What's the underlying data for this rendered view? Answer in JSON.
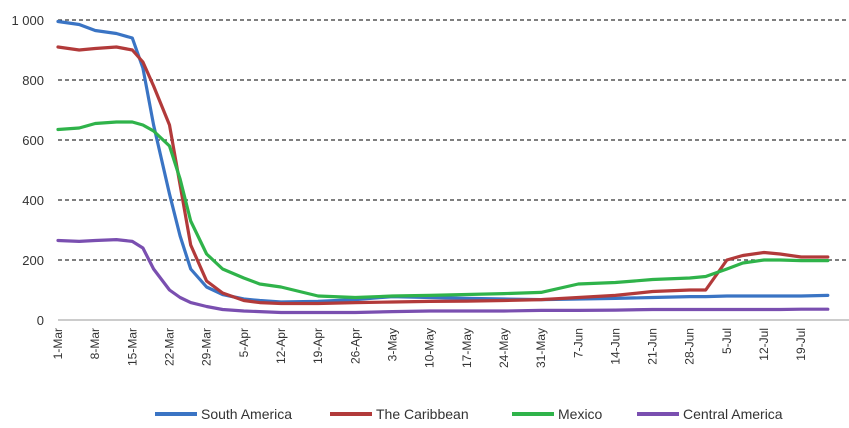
{
  "chart_data": {
    "type": "line",
    "title": "",
    "xlabel": "",
    "ylabel": "",
    "ylim": [
      0,
      1000
    ],
    "yticks": [
      "0",
      "200",
      "400",
      "600",
      "800",
      "1 000"
    ],
    "ytick_values": [
      0,
      200,
      400,
      600,
      800,
      1000
    ],
    "grid": "horizontal dashed",
    "legend_position": "bottom",
    "x_start": "1-Mar",
    "x_tick_labels": [
      "1-Mar",
      "8-Mar",
      "15-Mar",
      "22-Mar",
      "29-Mar",
      "5-Apr",
      "12-Apr",
      "19-Apr",
      "26-Apr",
      "3-May",
      "10-May",
      "17-May",
      "24-May",
      "31-May",
      "7-Jun",
      "14-Jun",
      "21-Jun",
      "28-Jun",
      "5-Jul",
      "12-Jul",
      "19-Jul"
    ],
    "x": [
      "1-Mar",
      "5-Mar",
      "8-Mar",
      "12-Mar",
      "15-Mar",
      "17-Mar",
      "19-Mar",
      "22-Mar",
      "24-Mar",
      "26-Mar",
      "29-Mar",
      "1-Apr",
      "5-Apr",
      "8-Apr",
      "12-Apr",
      "19-Apr",
      "26-Apr",
      "3-May",
      "10-May",
      "17-May",
      "24-May",
      "31-May",
      "7-Jun",
      "14-Jun",
      "21-Jun",
      "28-Jun",
      "1-Jul",
      "5-Jul",
      "8-Jul",
      "12-Jul",
      "15-Jul",
      "19-Jul",
      "24-Jul"
    ],
    "series": [
      {
        "name": "South America",
        "color": "#3a74c4",
        "values": [
          995,
          985,
          965,
          955,
          940,
          840,
          650,
          420,
          280,
          170,
          110,
          85,
          70,
          65,
          60,
          62,
          68,
          78,
          75,
          72,
          70,
          68,
          70,
          72,
          75,
          78,
          78,
          80,
          80,
          80,
          80,
          80,
          82
        ]
      },
      {
        "name": "The Caribbean",
        "color": "#b23a3a",
        "values": [
          910,
          900,
          905,
          910,
          900,
          860,
          780,
          650,
          450,
          250,
          130,
          90,
          65,
          58,
          55,
          55,
          58,
          60,
          62,
          63,
          65,
          68,
          75,
          82,
          95,
          100,
          100,
          200,
          215,
          225,
          220,
          210,
          210
        ]
      },
      {
        "name": "Mexico",
        "color": "#2fb34a",
        "values": [
          635,
          640,
          655,
          660,
          660,
          650,
          630,
          580,
          470,
          330,
          220,
          170,
          140,
          120,
          110,
          80,
          75,
          80,
          82,
          85,
          88,
          92,
          120,
          125,
          135,
          140,
          145,
          170,
          190,
          200,
          200,
          198,
          198
        ]
      },
      {
        "name": "Central America",
        "color": "#7a4fb0",
        "values": [
          265,
          262,
          265,
          268,
          262,
          240,
          170,
          100,
          75,
          58,
          45,
          35,
          30,
          28,
          25,
          25,
          25,
          28,
          30,
          30,
          30,
          32,
          32,
          33,
          35,
          35,
          35,
          35,
          35,
          35,
          35,
          36,
          36
        ]
      }
    ]
  }
}
